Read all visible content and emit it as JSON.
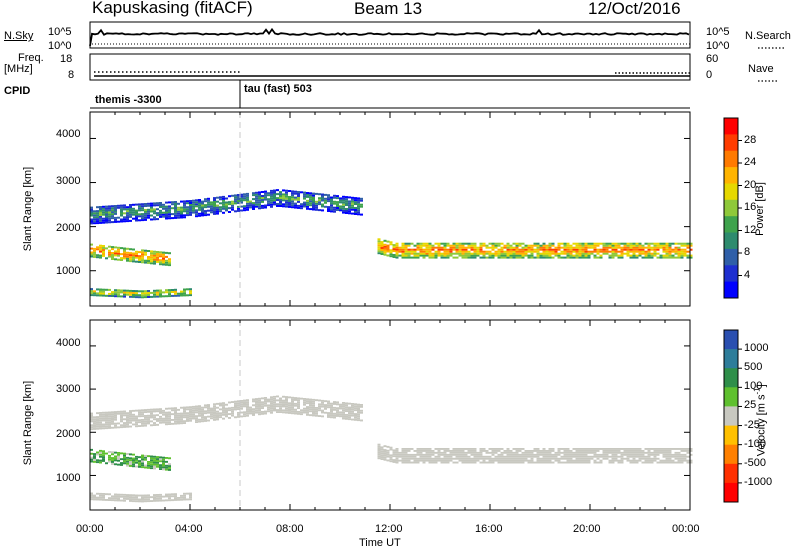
{
  "header": {
    "station": "Kapuskasing (fitACF)",
    "beam": "Beam 13",
    "date": "12/Oct/2016"
  },
  "top_panels": {
    "nsky_label": "N.Sky",
    "nsearch_label": "N.Search",
    "nsky_ticks": [
      "10^5",
      "10^0"
    ],
    "nsearch_ticks": [
      "10^5",
      "10^0"
    ],
    "freq_label_1": "Freq.",
    "freq_label_2": "[MHz]",
    "freq_ticks": [
      "18",
      "8"
    ],
    "nave_label": "Nave",
    "nave_ticks": [
      "60",
      "0"
    ],
    "cpid_label": "CPID",
    "cpid_1": "themis -3300",
    "cpid_2": "tau (fast) 503"
  },
  "axes": {
    "ylabel": "Slant Range [km]",
    "xlabel": "Time UT",
    "y_ticks": [
      "4000",
      "3000",
      "2000",
      "1000"
    ],
    "x_ticks": [
      "00:00",
      "04:00",
      "08:00",
      "12:00",
      "16:00",
      "20:00",
      "00:00"
    ]
  },
  "power_colorbar": {
    "label": "Power [dB]",
    "ticks": [
      "28",
      "24",
      "20",
      "16",
      "12",
      "8",
      "4"
    ],
    "colors": [
      "#ff0000",
      "#ff3c00",
      "#ff7a00",
      "#ffb400",
      "#e6d800",
      "#8fc93a",
      "#3fa34d",
      "#2e8b6e",
      "#2f5fa8",
      "#1e2fd0",
      "#0000ff"
    ]
  },
  "velocity_colorbar": {
    "label_main": "Velocity  [m s",
    "label_sup": "-1",
    "label_end": "]",
    "ticks": [
      "1000",
      "500",
      "100",
      "25",
      "-25",
      "-100",
      "-500",
      "-1000"
    ],
    "colors": [
      "#2a4fb0",
      "#2e7d9a",
      "#2f8f4a",
      "#5fc02f",
      "#c8c8c0",
      "#ffc000",
      "#ff8000",
      "#ff3000",
      "#ff0000"
    ],
    "ground_scatter": "#c8c8c0"
  },
  "chart_data": {
    "type": "heatmap",
    "xlabel": "Time UT",
    "ylabel": "Slant Range [km]",
    "xlim": [
      0,
      24
    ],
    "ylim": [
      200,
      4600
    ],
    "x_tick_values": [
      0,
      4,
      8,
      12,
      16,
      20,
      24
    ],
    "y_tick_values": [
      4000,
      3000,
      2000,
      1000
    ],
    "power_clim": [
      0,
      30
    ],
    "velocity_clim": [
      -1000,
      1000
    ],
    "cpid_change_hour": 6.0,
    "freq_level_mhz": [
      {
        "from": 0,
        "to": 6.0,
        "value": 10.5,
        "style": "dotted"
      },
      {
        "from": 0,
        "to": 24,
        "value": 8.0,
        "style": "solid"
      }
    ],
    "nave_level": [
      {
        "from": 6.0,
        "to": 21.0,
        "value": 0
      },
      {
        "from": 21.0,
        "to": 24,
        "value": 0
      }
    ],
    "scatter_regions": [
      {
        "name": "ionospheric band upper",
        "t": [
          0.0,
          4.0,
          7.5,
          10.0,
          10.8
        ],
        "range": [
          2250,
          2400,
          2650,
          2500,
          2450
        ],
        "width": 400,
        "power_db": 12,
        "velocity": 25,
        "ground": true
      },
      {
        "name": "ionospheric band lower early",
        "t": [
          0.0,
          1.5,
          3.2
        ],
        "range": [
          1450,
          1350,
          1250
        ],
        "width": 300,
        "power_db": 24,
        "velocity": 100,
        "ground": false
      },
      {
        "name": "ground scatter band after noon",
        "t": [
          11.5,
          12.2,
          16.0,
          20.0,
          24.0
        ],
        "range": [
          1550,
          1450,
          1450,
          1450,
          1450
        ],
        "width": 350,
        "power_db": 24,
        "velocity": 0,
        "ground": true
      },
      {
        "name": "near range",
        "t": [
          0.0,
          2.0,
          4.0
        ],
        "range": [
          500,
          450,
          500
        ],
        "width": 150,
        "power_db": 20,
        "velocity": 0,
        "ground": true
      }
    ]
  }
}
